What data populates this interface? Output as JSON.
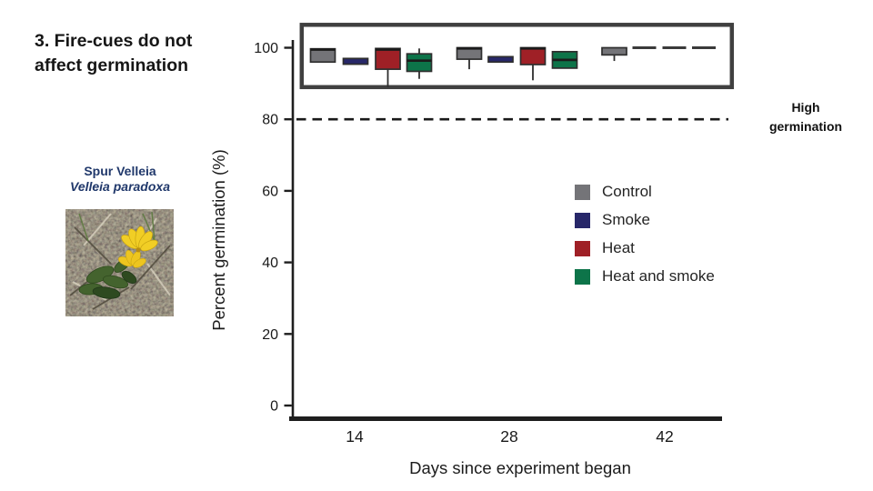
{
  "slide": {
    "title": "3. Fire-cues do not affect germination",
    "species": {
      "common_name": "Spur Velleia",
      "latin_name": "Velleia paradoxa"
    }
  },
  "legend": {
    "items": [
      {
        "label": "Control",
        "color": "#747478"
      },
      {
        "label": "Smoke",
        "color": "#272769"
      },
      {
        "label": "Heat",
        "color": "#9f2026"
      },
      {
        "label": "Heat and smoke",
        "color": "#0d7449"
      }
    ]
  },
  "chart_data": {
    "type": "boxplot",
    "title": "",
    "xlabel": "Days since experiment began",
    "ylabel": "Percent germination (%)",
    "ylim": [
      0,
      100
    ],
    "yticks": [
      100,
      80,
      60,
      40,
      20,
      0
    ],
    "xticks": [
      14,
      28,
      42
    ],
    "grid": false,
    "legend_position": "center-right",
    "reference_line": {
      "value": 80,
      "style": "dashed",
      "label": "High germination"
    },
    "highlight_box": {
      "around": "all boxplots clustered near 100%",
      "color": "#404040"
    },
    "groups": [
      {
        "day": 14,
        "boxes": [
          {
            "treatment": "Control",
            "q1": 96.0,
            "median": 99.5,
            "q3": 99.7
          },
          {
            "treatment": "Smoke",
            "q1": 95.4,
            "median": 96.2,
            "q3": 97.0
          },
          {
            "treatment": "Heat",
            "q1": 94.0,
            "median": 99.5,
            "q3": 99.8,
            "whisker_low": 89.0
          },
          {
            "treatment": "Heat and smoke",
            "q1": 93.4,
            "median": 96.4,
            "q3": 98.3,
            "whisker_low": 91.3,
            "whisker_high": 99.8
          }
        ]
      },
      {
        "day": 28,
        "boxes": [
          {
            "treatment": "Control",
            "q1": 96.8,
            "median": 99.8,
            "q3": 100,
            "whisker_low": 94.0
          },
          {
            "treatment": "Smoke",
            "q1": 96.0,
            "median": 96.7,
            "q3": 97.5
          },
          {
            "treatment": "Heat",
            "q1": 95.3,
            "median": 99.8,
            "q3": 100,
            "whisker_low": 90.9
          },
          {
            "treatment": "Heat and smoke",
            "q1": 94.3,
            "median": 96.6,
            "q3": 98.9
          }
        ]
      },
      {
        "day": 42,
        "boxes": [
          {
            "treatment": "Control",
            "q1": 98.0,
            "median": 100,
            "q3": 100,
            "whisker_low": 96.3
          },
          {
            "treatment": "Smoke",
            "q1": 100,
            "median": 100,
            "q3": 100
          },
          {
            "treatment": "Heat",
            "q1": 100,
            "median": 100,
            "q3": 100
          },
          {
            "treatment": "Heat and smoke",
            "q1": 100,
            "median": 100,
            "q3": 100
          }
        ]
      }
    ]
  }
}
